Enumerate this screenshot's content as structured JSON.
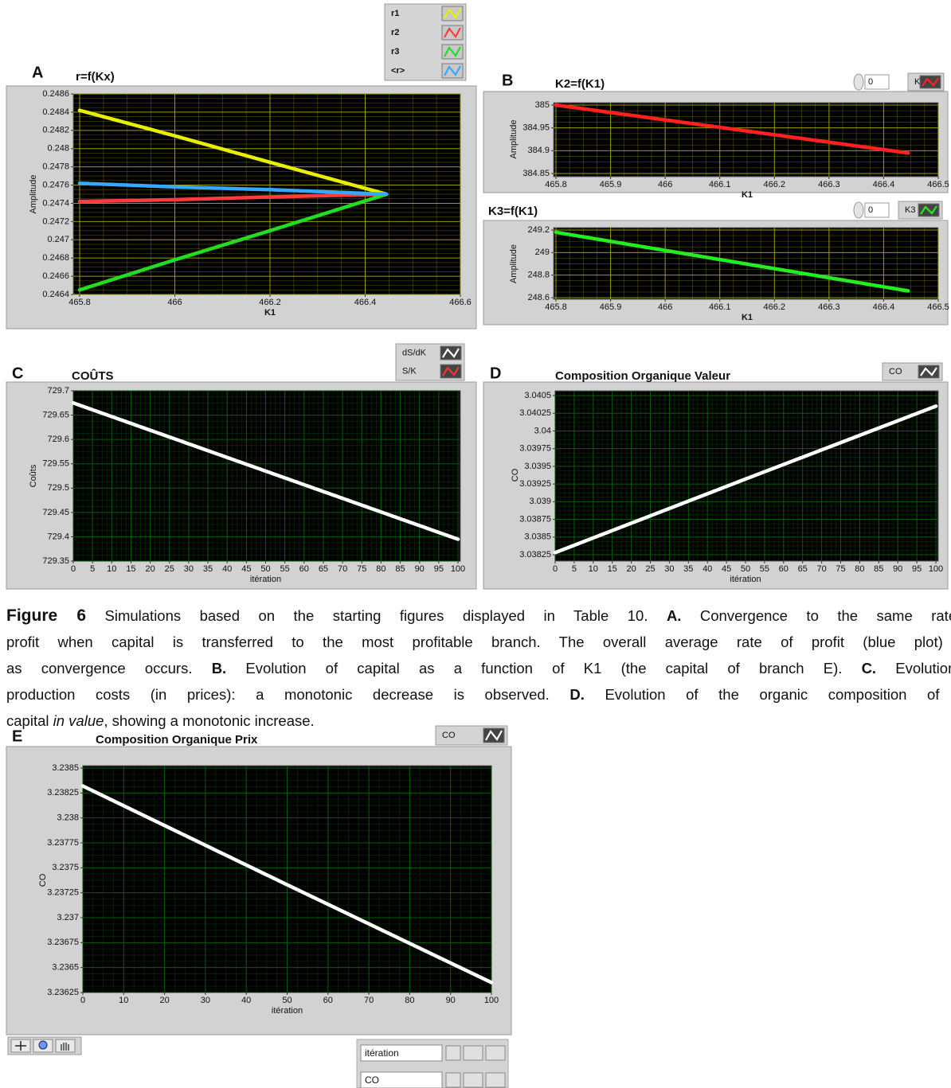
{
  "chart_data": [
    {
      "type": "line",
      "panel": "A",
      "title": "r=f(Kx)",
      "xlabel": "K1",
      "ylabel": "Amplitude",
      "x": [
        465.8,
        466.0,
        466.2,
        466.445
      ],
      "series": [
        {
          "name": "r1",
          "color": "#e8f000",
          "values": [
            0.24842,
            0.24814,
            0.24785,
            0.2475
          ]
        },
        {
          "name": "r2",
          "color": "#ff3c3c",
          "values": [
            0.24742,
            0.24744,
            0.24747,
            0.2475
          ]
        },
        {
          "name": "r3",
          "color": "#22dd22",
          "values": [
            0.24645,
            0.24678,
            0.2471,
            0.2475
          ]
        },
        {
          "name": "<r>",
          "color": "#33aaff",
          "values": [
            0.24762,
            0.24758,
            0.24755,
            0.2475
          ]
        }
      ],
      "xlim": [
        465.8,
        466.6
      ],
      "xticks": [
        465.8,
        466,
        466.2,
        466.4,
        466.6
      ],
      "ylim": [
        0.2464,
        0.2486
      ],
      "yticks": [
        0.2464,
        0.2466,
        0.2468,
        0.247,
        0.2472,
        0.2474,
        0.2476,
        0.2478,
        0.248,
        0.2482,
        0.2484,
        0.2486
      ],
      "grid": true,
      "grid_color": "#9c9c00",
      "plot_background": "#000000"
    },
    {
      "type": "line",
      "panel": "B",
      "title": "K2=f(K1)",
      "xlabel": "K1",
      "ylabel": "Amplitude",
      "index": 0,
      "x": [
        465.8,
        466.445
      ],
      "series": [
        {
          "name": "K2",
          "color": "#ff2020",
          "values": [
            385.0,
            384.895
          ]
        }
      ],
      "xlim": [
        465.8,
        466.5
      ],
      "xticks": [
        465.8,
        465.9,
        466,
        466.1,
        466.2,
        466.3,
        466.4,
        466.5
      ],
      "ylim": [
        384.85,
        385
      ],
      "yticks": [
        384.85,
        384.9,
        384.95,
        385
      ],
      "grid": true,
      "grid_color": "#9c9c00",
      "plot_background": "#000000"
    },
    {
      "type": "line",
      "title": "K3=f(K1)",
      "xlabel": "K1",
      "ylabel": "Amplitude",
      "index": 0,
      "x": [
        465.8,
        466.445
      ],
      "series": [
        {
          "name": "K3",
          "color": "#22ee22",
          "values": [
            249.18,
            248.66
          ]
        }
      ],
      "xlim": [
        465.8,
        466.5
      ],
      "xticks": [
        465.8,
        465.9,
        466,
        466.1,
        466.2,
        466.3,
        466.4,
        466.5
      ],
      "ylim": [
        248.6,
        249.2
      ],
      "yticks": [
        248.6,
        248.8,
        249,
        249.2
      ],
      "grid": true,
      "grid_color": "#9c9c00",
      "plot_background": "#000000"
    },
    {
      "type": "line",
      "panel": "C",
      "title": "COÛTS",
      "xlabel": "itération",
      "ylabel": "Coûts",
      "x": [
        0,
        50,
        100
      ],
      "series": [
        {
          "name": "dS/dK",
          "color": "#ffffff",
          "values": [
            729.675,
            729.535,
            729.395
          ]
        },
        {
          "name": "S/K",
          "color": "#ff3030"
        }
      ],
      "xlim": [
        0,
        100
      ],
      "xticks": [
        0,
        5,
        10,
        15,
        20,
        25,
        30,
        35,
        40,
        45,
        50,
        55,
        60,
        65,
        70,
        75,
        80,
        85,
        90,
        95,
        100
      ],
      "ylim": [
        729.35,
        729.7
      ],
      "yticks": [
        729.35,
        729.4,
        729.45,
        729.5,
        729.55,
        729.6,
        729.65,
        729.7
      ],
      "grid": true,
      "grid_color": "#0c5c0c",
      "plot_background": "#000000"
    },
    {
      "type": "line",
      "panel": "D",
      "title": "Composition Organique Valeur",
      "xlabel": "itération",
      "ylabel": "CO",
      "x": [
        0,
        50,
        100
      ],
      "series": [
        {
          "name": "CO",
          "color": "#ffffff",
          "values": [
            3.03828,
            3.03932,
            3.04035
          ]
        }
      ],
      "xlim": [
        0,
        100
      ],
      "xticks": [
        0,
        5,
        10,
        15,
        20,
        25,
        30,
        35,
        40,
        45,
        50,
        55,
        60,
        65,
        70,
        75,
        80,
        85,
        90,
        95,
        100
      ],
      "ylim": [
        3.03825,
        3.0405
      ],
      "yticks": [
        3.03825,
        3.0385,
        3.03875,
        3.039,
        3.03925,
        3.0395,
        3.03975,
        3.04,
        3.04025,
        3.0405
      ],
      "grid": true,
      "grid_color": "#0c5c0c",
      "plot_background": "#000000"
    },
    {
      "type": "line",
      "panel": "E",
      "title": "Composition Organique Prix",
      "xlabel": "itération",
      "ylabel": "CO",
      "x": [
        0,
        50,
        100
      ],
      "series": [
        {
          "name": "CO",
          "color": "#ffffff",
          "values": [
            3.23832,
            3.23733,
            3.23635
          ]
        }
      ],
      "xlim": [
        0,
        100
      ],
      "xticks": [
        0,
        10,
        20,
        30,
        40,
        50,
        60,
        70,
        80,
        90,
        100
      ],
      "ylim": [
        3.23625,
        3.2385
      ],
      "yticks": [
        3.23625,
        3.2365,
        3.23675,
        3.237,
        3.23725,
        3.2375,
        3.23775,
        3.238,
        3.23825,
        3.2385
      ],
      "grid": true,
      "grid_color": "#0c5c0c",
      "plot_background": "#000000",
      "scale_legend": [
        "itération",
        "CO"
      ]
    }
  ],
  "caption": {
    "lines": [
      [
        {
          "text": "Figure 6",
          "bold": true
        },
        {
          "text": " Simulations based on the starting figures displayed in Table 10. "
        },
        {
          "text": "A.",
          "bold": true
        },
        {
          "text": " Convergence to the same rate of"
        }
      ],
      [
        {
          "text": "profit when capital is transferred to the most profitable branch. The overall average rate of profit (blue plot) falls"
        }
      ],
      [
        {
          "text": "as convergence occurs. "
        },
        {
          "text": "B.",
          "bold": true
        },
        {
          "text": " Evolution of capital as a function of K1 (the capital of branch E). "
        },
        {
          "text": "C.",
          "bold": true
        },
        {
          "text": " Evolution of"
        }
      ],
      [
        {
          "text": "production costs (in prices): a monotonic decrease is observed. "
        },
        {
          "text": "D.",
          "bold": true
        },
        {
          "text": " Evolution of the organic composition of total"
        }
      ],
      [
        {
          "text": "capital "
        },
        {
          "text": "in value",
          "italic": true
        },
        {
          "text": ", showing a monotonic increase."
        }
      ]
    ]
  }
}
